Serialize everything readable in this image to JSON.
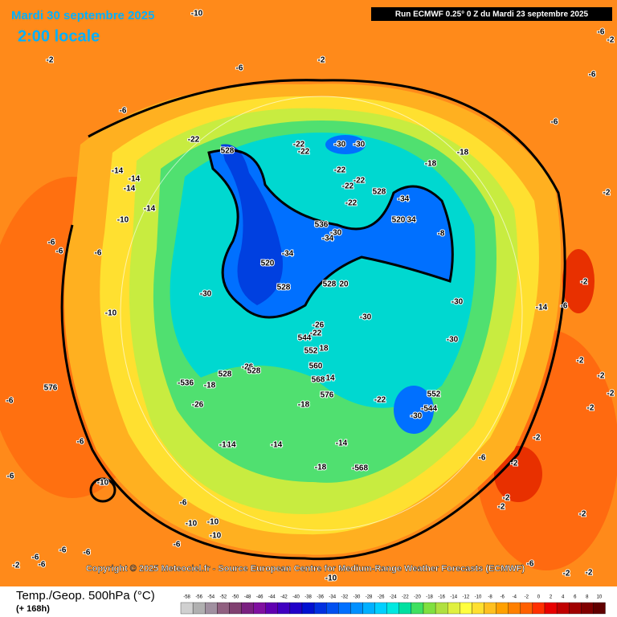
{
  "header": {
    "date": "Mardi 30 septembre 2025",
    "time": "2:00 locale",
    "run": "Run ECMWF 0.25° 0 Z du Mardi 23 septembre 2025"
  },
  "copyright": "Copyright © 2025 Meteociel.fr - Source European Centre for Medium-Range Weather Forecasts (ECMWF)",
  "footer": {
    "title": "Temp./Geop. 500hPa (°C)",
    "lead": "(+ 168h)"
  },
  "legend": {
    "ticks": [
      -58,
      -56,
      -54,
      -52,
      -50,
      -48,
      -46,
      -44,
      -42,
      -40,
      -38,
      -36,
      -34,
      -32,
      -30,
      -28,
      -26,
      -24,
      -22,
      -20,
      -18,
      -16,
      -14,
      -12,
      -10,
      -8,
      -6,
      -4,
      -2,
      0,
      2,
      4,
      6,
      8,
      10
    ],
    "colors": [
      "#d0d0d0",
      "#b0b0b0",
      "#a090a0",
      "#906080",
      "#804070",
      "#7a2080",
      "#8010a0",
      "#6000b0",
      "#4000c0",
      "#2000c8",
      "#0010d0",
      "#0030e0",
      "#0050f0",
      "#0070ff",
      "#0090ff",
      "#00b0ff",
      "#00d0ff",
      "#00e8e0",
      "#00e0a0",
      "#40e060",
      "#80e040",
      "#b0e040",
      "#e0f040",
      "#ffff40",
      "#ffe030",
      "#ffc020",
      "#ffa000",
      "#ff8000",
      "#ff6000",
      "#ff3000",
      "#e80000",
      "#c00000",
      "#a00000",
      "#800000",
      "#600000"
    ]
  },
  "map_labels": [
    "-10",
    "-2",
    "-6",
    "-2",
    "-6",
    "-6",
    "-2",
    "-6",
    "-6",
    "-22",
    "-22",
    "-22",
    "-30",
    "-30",
    "-18",
    "528",
    "-14",
    "-14",
    "-14",
    "-18",
    "-22",
    "-22",
    "-22",
    "528",
    "-34",
    "-2",
    "-22",
    "-14",
    "-10",
    "520",
    "34",
    "536",
    "-30",
    "-34",
    "-8",
    "-6",
    "-6",
    "-6",
    "-34",
    "520",
    "528",
    "528",
    "20",
    "-2",
    "-30",
    "-10",
    "-30",
    "-14",
    "-6",
    "-30",
    "-26",
    "-22",
    "544",
    "552",
    "18",
    "-30",
    "-26",
    "528",
    "528",
    "560",
    "-2",
    "-2",
    "568",
    "14",
    "-536",
    "-18",
    "576",
    "-6",
    "576",
    "-22",
    "552",
    "-18",
    "-544",
    "-30",
    "-26",
    "-2",
    "-2",
    "-6",
    "-14",
    "14",
    "-14",
    "-14",
    "-2",
    "-6",
    "-18",
    "-568",
    "-6",
    "-2",
    "-10",
    "-6",
    "-2",
    "-2",
    "-2",
    "-10",
    "-10",
    "-10",
    "-6",
    "-6",
    "-6",
    "-6",
    "-6",
    "-2",
    "-6",
    "-2",
    "-2",
    "-10"
  ]
}
